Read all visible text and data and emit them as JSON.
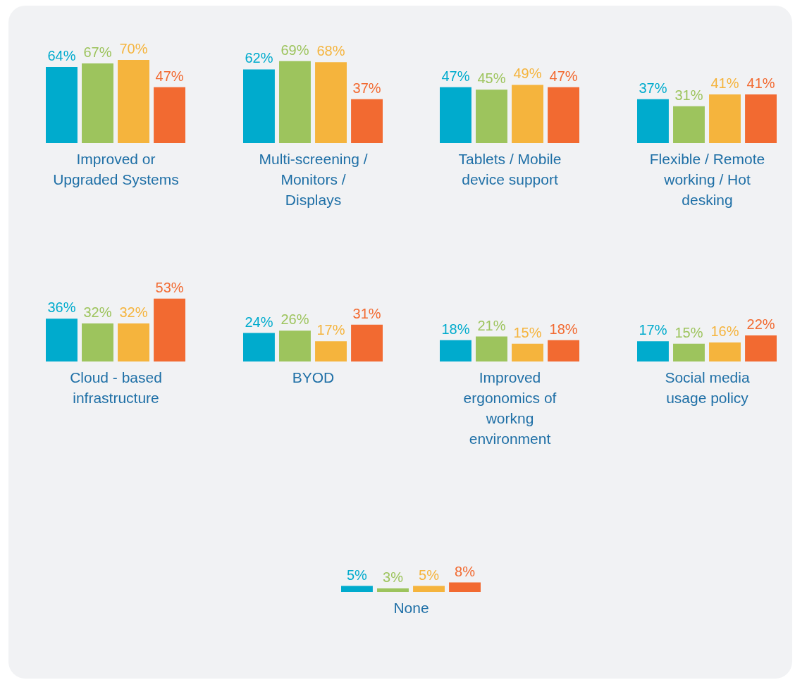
{
  "chart_data": [
    {
      "type": "bar",
      "xlabel": "Improved or Upgraded Systems",
      "categories": [
        null,
        null,
        null,
        null
      ],
      "values": [
        64,
        67,
        70,
        47
      ],
      "value_labels": [
        "64%",
        "67%",
        "70%",
        "47%"
      ],
      "colors": [
        "#00abcd",
        "#9dc45d",
        "#f5b43d",
        "#f26a31"
      ],
      "tick_labels": false,
      "grid": false
    },
    {
      "type": "bar",
      "xlabel": "Multi-screening / Monitors / Displays",
      "categories": [
        null,
        null,
        null,
        null
      ],
      "values": [
        62,
        69,
        68,
        37
      ],
      "value_labels": [
        "62%",
        "69%",
        "68%",
        "37%"
      ],
      "colors": [
        "#00abcd",
        "#9dc45d",
        "#f5b43d",
        "#f26a31"
      ],
      "tick_labels": false,
      "grid": false
    },
    {
      "type": "bar",
      "xlabel": "Tablets / Mobile device support",
      "categories": [
        null,
        null,
        null,
        null
      ],
      "values": [
        47,
        45,
        49,
        47
      ],
      "value_labels": [
        "47%",
        "45%",
        "49%",
        "47%"
      ],
      "colors": [
        "#00abcd",
        "#9dc45d",
        "#f5b43d",
        "#f26a31"
      ],
      "tick_labels": false,
      "grid": false
    },
    {
      "type": "bar",
      "xlabel": "Flexible / Remote working / Hot desking",
      "categories": [
        null,
        null,
        null,
        null
      ],
      "values": [
        37,
        31,
        41,
        41
      ],
      "value_labels": [
        "37%",
        "31%",
        "41%",
        "41%"
      ],
      "colors": [
        "#00abcd",
        "#9dc45d",
        "#f5b43d",
        "#f26a31"
      ],
      "tick_labels": false,
      "grid": false
    },
    {
      "type": "bar",
      "xlabel": "Cloud - based infrastructure",
      "categories": [
        null,
        null,
        null,
        null
      ],
      "values": [
        36,
        32,
        32,
        53
      ],
      "value_labels": [
        "36%",
        "32%",
        "32%",
        "53%"
      ],
      "colors": [
        "#00abcd",
        "#9dc45d",
        "#f5b43d",
        "#f26a31"
      ],
      "tick_labels": false,
      "grid": false
    },
    {
      "type": "bar",
      "xlabel": "BYOD",
      "categories": [
        null,
        null,
        null,
        null
      ],
      "values": [
        24,
        26,
        17,
        31
      ],
      "value_labels": [
        "24%",
        "26%",
        "17%",
        "31%"
      ],
      "colors": [
        "#00abcd",
        "#9dc45d",
        "#f5b43d",
        "#f26a31"
      ],
      "tick_labels": false,
      "grid": false
    },
    {
      "type": "bar",
      "xlabel": "Improved ergonomics of workng environment",
      "categories": [
        null,
        null,
        null,
        null
      ],
      "values": [
        18,
        21,
        15,
        18
      ],
      "value_labels": [
        "18%",
        "21%",
        "15%",
        "18%"
      ],
      "colors": [
        "#00abcd",
        "#9dc45d",
        "#f5b43d",
        "#f26a31"
      ],
      "tick_labels": false,
      "grid": false
    },
    {
      "type": "bar",
      "xlabel": "Social media usage policy",
      "categories": [
        null,
        null,
        null,
        null
      ],
      "values": [
        17,
        15,
        16,
        22
      ],
      "value_labels": [
        "17%",
        "15%",
        "16%",
        "22%"
      ],
      "colors": [
        "#00abcd",
        "#9dc45d",
        "#f5b43d",
        "#f26a31"
      ],
      "tick_labels": false,
      "grid": false
    },
    {
      "type": "bar",
      "xlabel": "None",
      "categories": [
        null,
        null,
        null,
        null
      ],
      "values": [
        5,
        3,
        5,
        8
      ],
      "value_labels": [
        "5%",
        "3%",
        "5%",
        "8%"
      ],
      "colors": [
        "#00abcd",
        "#9dc45d",
        "#f5b43d",
        "#f26a31"
      ],
      "tick_labels": false,
      "grid": false
    }
  ]
}
